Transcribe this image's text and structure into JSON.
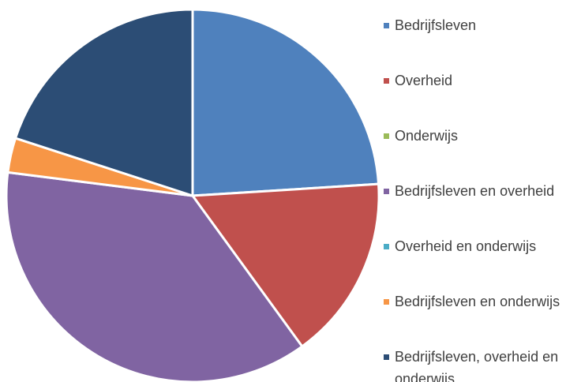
{
  "chart_data": {
    "type": "pie",
    "categories": [
      "Bedrijfsleven",
      "Overheid",
      "Onderwijs",
      "Bedrijfsleven en overheid",
      "Overheid en onderwijs",
      "Bedrijfsleven en onderwijs",
      "Bedrijfsleven, overheid en onderwijs"
    ],
    "values": [
      24,
      16,
      0,
      37,
      0,
      3,
      20
    ],
    "colors": [
      "#4f81bd",
      "#c0504d",
      "#9bbb59",
      "#8064a2",
      "#4bacc6",
      "#f79646",
      "#2c4d75"
    ],
    "legend": "right"
  }
}
